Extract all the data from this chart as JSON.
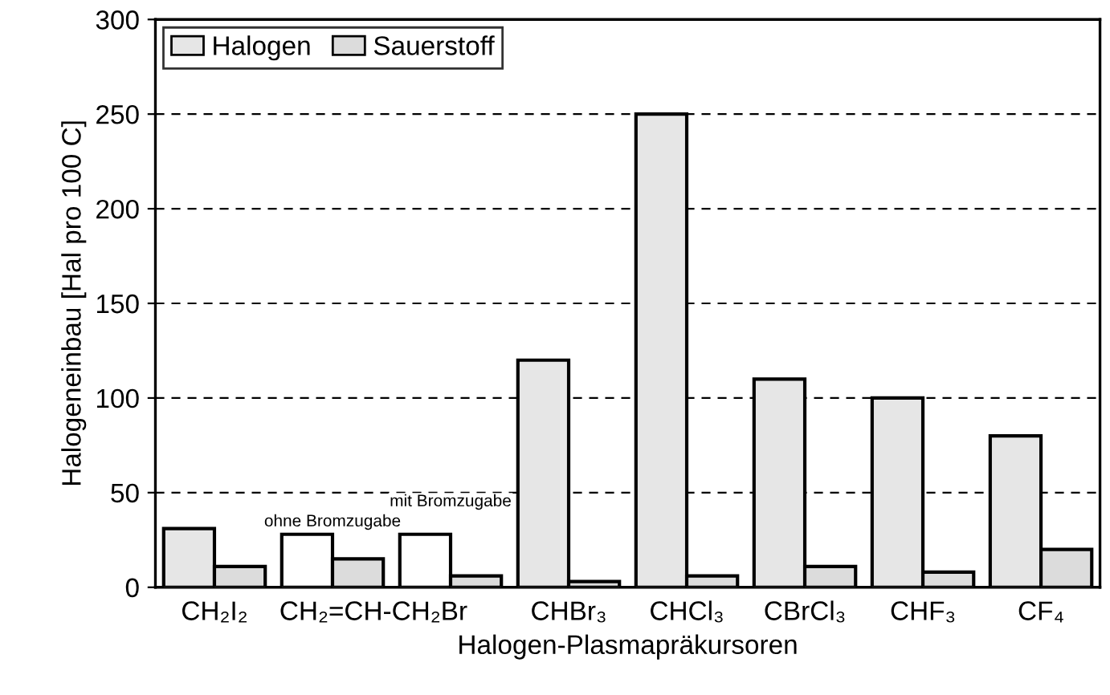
{
  "chart_data": {
    "type": "bar",
    "categories": [
      "CH₂I₂",
      "CH₂=CH-CH₂Br",
      null,
      "CHBr₃",
      "CHCl₃",
      "CBrCl₃",
      "CHF₃",
      "CF₄"
    ],
    "series": [
      {
        "name": "Halogen",
        "color": "#e6e6e6",
        "colors": [
          "#e6e6e6",
          "#ffffff",
          "#ffffff",
          "#e6e6e6",
          "#e6e6e6",
          "#e6e6e6",
          "#e6e6e6",
          "#e6e6e6"
        ],
        "values": [
          31,
          28,
          28,
          120,
          250,
          110,
          100,
          80
        ]
      },
      {
        "name": "Sauerstoff",
        "color": "#dcdcdc",
        "values": [
          11,
          15,
          6,
          3,
          6,
          11,
          8,
          20
        ]
      }
    ],
    "xlabel": "Halogen-Plasmapräkursoren",
    "ylabel": "Halogeneinbau [Hal pro 100 C]",
    "ylim": [
      0,
      300
    ],
    "yticks": [
      0,
      50,
      100,
      150,
      200,
      250,
      300
    ],
    "annotations": [
      "ohne Bromzugabe",
      "mit Bromzugabe"
    ],
    "grid": "y",
    "legend": "top left"
  }
}
